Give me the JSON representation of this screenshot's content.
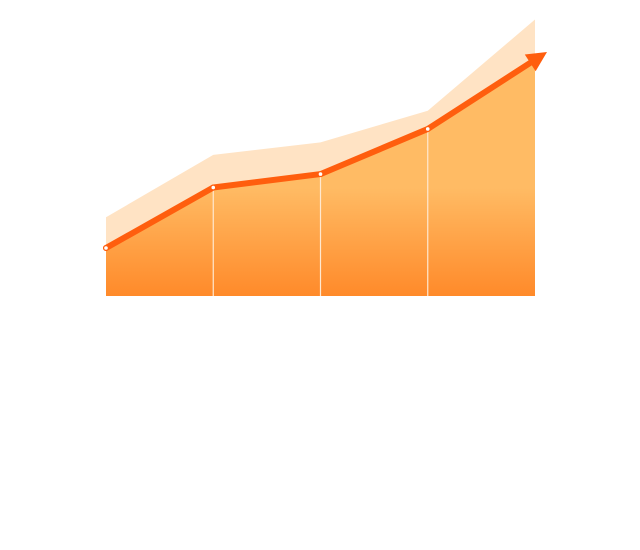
{
  "chart_data": {
    "type": "area",
    "x": [
      1,
      2,
      3,
      4,
      5
    ],
    "series": [
      {
        "values": [
          50,
          113,
          127,
          174,
          250
        ]
      },
      {
        "values": [
          82,
          147,
          160,
          193,
          288
        ]
      }
    ],
    "ylim": [
      0,
      300
    ],
    "grid": false,
    "colors": {
      "line": "#ff5e0e",
      "area_top": "#ffbb64",
      "area_bottom": "#ff8a2a",
      "band": "#ffe3c4",
      "divider": "#ffe8d0",
      "marker_fill": "#ffffff"
    }
  }
}
